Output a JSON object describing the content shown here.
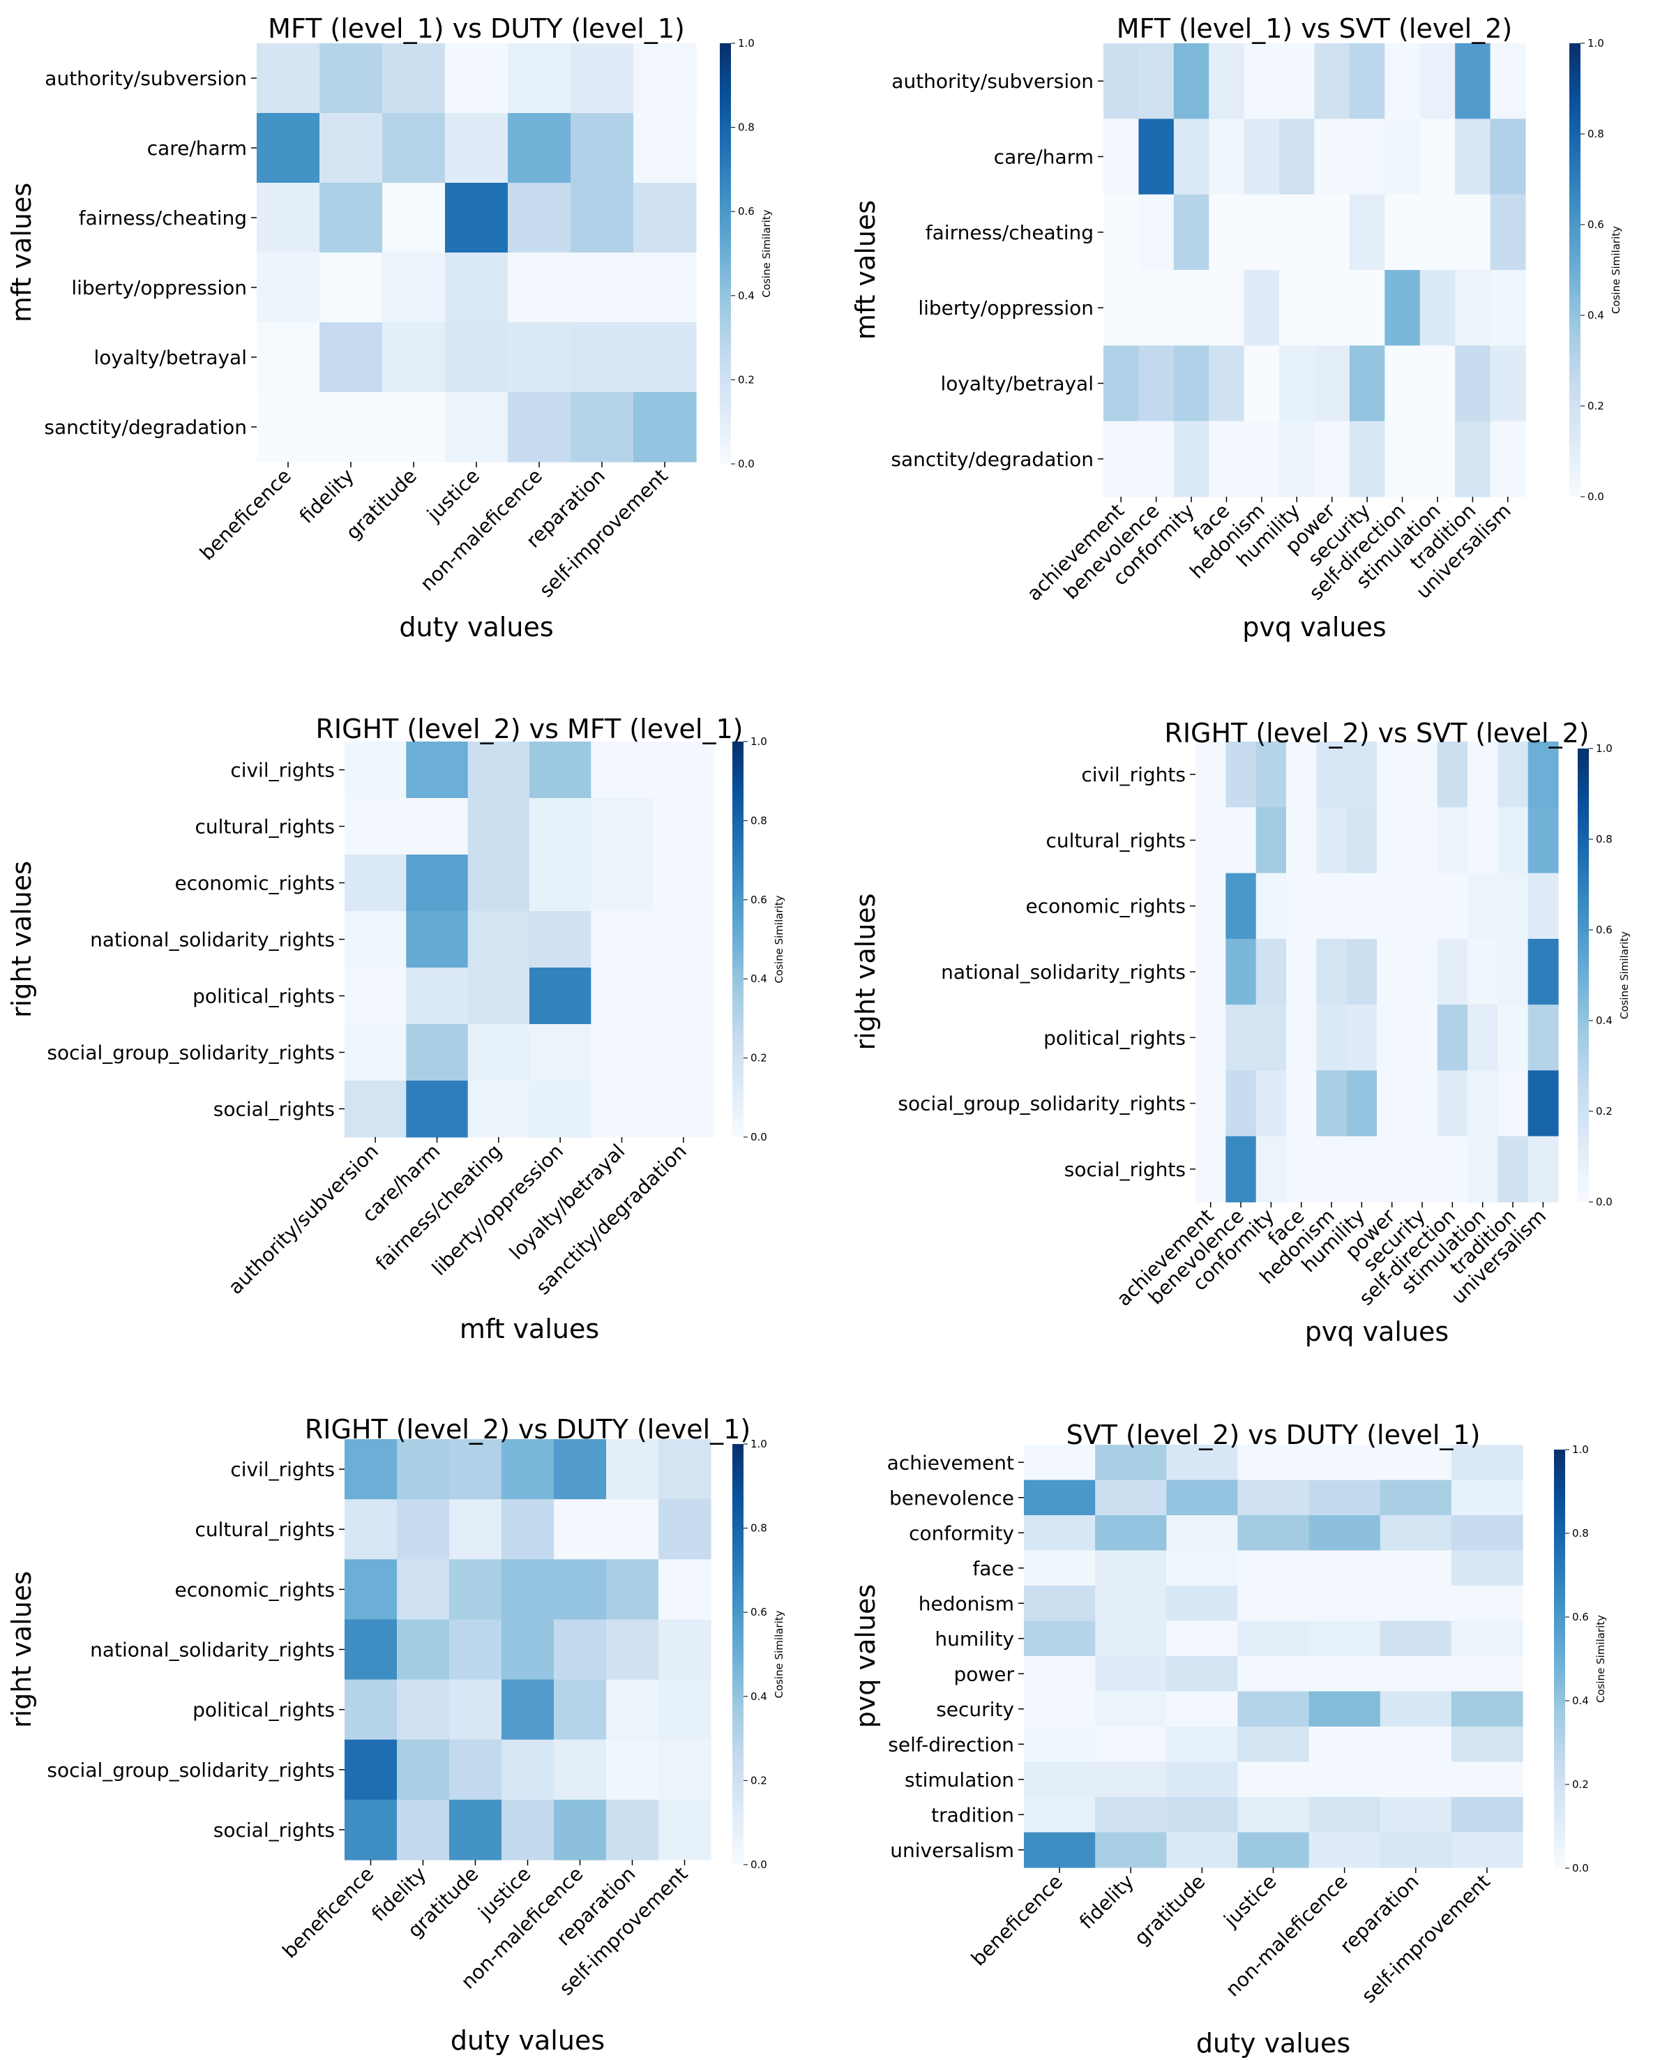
{
  "colors": {
    "low": "#f7fbff",
    "high": "#08306b"
  },
  "chart_data": [
    {
      "type": "heatmap",
      "title": "MFT (level_1) vs DUTY (level_1)",
      "xlabel": "duty values",
      "ylabel": "mft values",
      "colorbar_label": "Cosine Similarity",
      "colorbar_ticks": [
        "0.0",
        "0.2",
        "0.4",
        "0.6",
        "0.8",
        "1.0"
      ],
      "vrange": [
        0,
        1
      ],
      "rows": [
        "authority/subversion",
        "care/harm",
        "fairness/cheating",
        "liberty/oppression",
        "loyalty/betrayal",
        "sanctity/degradation"
      ],
      "cols": [
        "beneficence",
        "fidelity",
        "gratitude",
        "justice",
        "non-maleficence",
        "reparation",
        "self-improvement"
      ],
      "values": [
        [
          0.17,
          0.3,
          0.22,
          0.02,
          0.08,
          0.12,
          0.03
        ],
        [
          0.62,
          0.17,
          0.3,
          0.12,
          0.48,
          0.32,
          0.02
        ],
        [
          0.09,
          0.33,
          0.01,
          0.75,
          0.24,
          0.32,
          0.2
        ],
        [
          0.05,
          0.01,
          0.06,
          0.14,
          0.02,
          0.02,
          0.02
        ],
        [
          0.01,
          0.25,
          0.1,
          0.16,
          0.14,
          0.16,
          0.16
        ],
        [
          0.0,
          0.0,
          0.0,
          0.06,
          0.24,
          0.3,
          0.4
        ]
      ]
    },
    {
      "type": "heatmap",
      "title": "MFT (level_1) vs SVT (level_2)",
      "xlabel": "pvq values",
      "ylabel": "mft values",
      "colorbar_label": "Cosine Similarity",
      "colorbar_ticks": [
        "0.0",
        "0.2",
        "0.4",
        "0.6",
        "0.8",
        "1.0"
      ],
      "vrange": [
        0,
        1
      ],
      "rows": [
        "authority/subversion",
        "care/harm",
        "fairness/cheating",
        "liberty/oppression",
        "loyalty/betrayal",
        "sanctity/degradation"
      ],
      "cols": [
        "achievement",
        "benevolence",
        "conformity",
        "face",
        "hedonism",
        "humility",
        "power",
        "security",
        "self-direction",
        "stimulation",
        "tradition",
        "universalism"
      ],
      "values": [
        [
          0.22,
          0.2,
          0.45,
          0.1,
          0.02,
          0.02,
          0.2,
          0.28,
          0.02,
          0.07,
          0.58,
          0.03
        ],
        [
          0.02,
          0.78,
          0.14,
          0.04,
          0.12,
          0.2,
          0.02,
          0.02,
          0.04,
          0.0,
          0.16,
          0.32
        ],
        [
          0.0,
          0.02,
          0.3,
          0.0,
          0.0,
          0.0,
          0.0,
          0.1,
          0.0,
          0.0,
          0.0,
          0.24
        ],
        [
          0.0,
          0.0,
          0.0,
          0.0,
          0.12,
          0.0,
          0.0,
          0.0,
          0.46,
          0.14,
          0.06,
          0.04
        ],
        [
          0.32,
          0.26,
          0.32,
          0.2,
          0.0,
          0.08,
          0.1,
          0.4,
          0.0,
          0.0,
          0.24,
          0.12
        ],
        [
          0.02,
          0.02,
          0.14,
          0.02,
          0.02,
          0.06,
          0.02,
          0.16,
          0.0,
          0.0,
          0.18,
          0.02
        ]
      ]
    },
    {
      "type": "heatmap",
      "title": "RIGHT (level_2) vs MFT (level_1)",
      "xlabel": "mft values",
      "ylabel": "right values",
      "colorbar_label": "Cosine Similarity",
      "colorbar_ticks": [
        "0.0",
        "0.2",
        "0.4",
        "0.6",
        "0.8",
        "1.0"
      ],
      "vrange": [
        0,
        1
      ],
      "rows": [
        "civil_rights",
        "cultural_rights",
        "economic_rights",
        "national_solidarity_rights",
        "political_rights",
        "social_group_solidarity_rights",
        "social_rights"
      ],
      "cols": [
        "authority/subversion",
        "care/harm",
        "fairness/cheating",
        "liberty/oppression",
        "loyalty/betrayal",
        "sanctity/degradation"
      ],
      "values": [
        [
          0.04,
          0.5,
          0.22,
          0.38,
          0.02,
          0.02
        ],
        [
          0.02,
          0.02,
          0.22,
          0.08,
          0.06,
          0.02
        ],
        [
          0.14,
          0.56,
          0.22,
          0.08,
          0.06,
          0.02
        ],
        [
          0.04,
          0.52,
          0.18,
          0.2,
          0.02,
          0.02
        ],
        [
          0.02,
          0.14,
          0.18,
          0.68,
          0.02,
          0.02
        ],
        [
          0.04,
          0.34,
          0.08,
          0.06,
          0.02,
          0.02
        ],
        [
          0.18,
          0.7,
          0.06,
          0.08,
          0.02,
          0.02
        ]
      ]
    },
    {
      "type": "heatmap",
      "title": "RIGHT (level_2) vs SVT (level_2)",
      "xlabel": "pvq values",
      "ylabel": "right values",
      "colorbar_label": "Cosine Similarity",
      "colorbar_ticks": [
        "0.0",
        "0.2",
        "0.4",
        "0.6",
        "0.8",
        "1.0"
      ],
      "vrange": [
        0,
        1
      ],
      "rows": [
        "civil_rights",
        "cultural_rights",
        "economic_rights",
        "national_solidarity_rights",
        "political_rights",
        "social_group_solidarity_rights",
        "social_rights"
      ],
      "cols": [
        "achievement",
        "benevolence",
        "conformity",
        "face",
        "hedonism",
        "humility",
        "power",
        "security",
        "self-direction",
        "stimulation",
        "tradition",
        "universalism"
      ],
      "values": [
        [
          0.02,
          0.24,
          0.3,
          0.02,
          0.16,
          0.16,
          0.02,
          0.02,
          0.22,
          0.02,
          0.16,
          0.5
        ],
        [
          0.02,
          0.02,
          0.36,
          0.02,
          0.12,
          0.18,
          0.02,
          0.02,
          0.06,
          0.02,
          0.08,
          0.48
        ],
        [
          0.02,
          0.6,
          0.04,
          0.02,
          0.02,
          0.02,
          0.02,
          0.02,
          0.02,
          0.06,
          0.06,
          0.12
        ],
        [
          0.02,
          0.46,
          0.2,
          0.02,
          0.18,
          0.22,
          0.02,
          0.02,
          0.1,
          0.04,
          0.06,
          0.7
        ],
        [
          0.02,
          0.18,
          0.18,
          0.02,
          0.14,
          0.12,
          0.02,
          0.02,
          0.32,
          0.1,
          0.04,
          0.3
        ],
        [
          0.02,
          0.24,
          0.12,
          0.02,
          0.34,
          0.4,
          0.02,
          0.02,
          0.12,
          0.06,
          0.02,
          0.8
        ],
        [
          0.02,
          0.66,
          0.06,
          0.02,
          0.02,
          0.02,
          0.02,
          0.02,
          0.02,
          0.06,
          0.2,
          0.1
        ]
      ]
    },
    {
      "type": "heatmap",
      "title": "RIGHT (level_2) vs DUTY (level_1)",
      "xlabel": "duty values",
      "ylabel": "right values",
      "colorbar_label": "Cosine Similarity",
      "colorbar_ticks": [
        "0.0",
        "0.2",
        "0.4",
        "0.6",
        "0.8",
        "1.0"
      ],
      "vrange": [
        0,
        1
      ],
      "rows": [
        "civil_rights",
        "cultural_rights",
        "economic_rights",
        "national_solidarity_rights",
        "political_rights",
        "social_group_solidarity_rights",
        "social_rights"
      ],
      "cols": [
        "beneficence",
        "fidelity",
        "gratitude",
        "justice",
        "non-maleficence",
        "reparation",
        "self-improvement"
      ],
      "values": [
        [
          0.5,
          0.34,
          0.32,
          0.46,
          0.58,
          0.1,
          0.18
        ],
        [
          0.16,
          0.24,
          0.1,
          0.26,
          0.02,
          0.02,
          0.24
        ],
        [
          0.5,
          0.2,
          0.34,
          0.4,
          0.4,
          0.34,
          0.02
        ],
        [
          0.64,
          0.36,
          0.28,
          0.4,
          0.26,
          0.2,
          0.1
        ],
        [
          0.3,
          0.2,
          0.16,
          0.58,
          0.3,
          0.06,
          0.08
        ],
        [
          0.76,
          0.34,
          0.26,
          0.16,
          0.1,
          0.04,
          0.06
        ],
        [
          0.64,
          0.26,
          0.62,
          0.26,
          0.42,
          0.22,
          0.08
        ]
      ]
    },
    {
      "type": "heatmap",
      "title": "SVT (level_2)  vs DUTY (level_1)",
      "xlabel": "duty values",
      "ylabel": "pvq values",
      "colorbar_label": "Cosine Similarity",
      "colorbar_ticks": [
        "0.0",
        "0.2",
        "0.4",
        "0.6",
        "0.8",
        "1.0"
      ],
      "vrange": [
        0,
        1
      ],
      "rows": [
        "achievement",
        "benevolence",
        "conformity",
        "face",
        "hedonism",
        "humility",
        "power",
        "security",
        "self-direction",
        "stimulation",
        "tradition",
        "universalism"
      ],
      "cols": [
        "beneficence",
        "fidelity",
        "gratitude",
        "justice",
        "non-maleficence",
        "reparation",
        "self-improvement"
      ],
      "values": [
        [
          0.02,
          0.34,
          0.16,
          0.02,
          0.02,
          0.02,
          0.14
        ],
        [
          0.6,
          0.22,
          0.4,
          0.2,
          0.26,
          0.34,
          0.08
        ],
        [
          0.16,
          0.4,
          0.06,
          0.36,
          0.42,
          0.18,
          0.24
        ],
        [
          0.04,
          0.1,
          0.04,
          0.02,
          0.02,
          0.02,
          0.16
        ],
        [
          0.22,
          0.1,
          0.16,
          0.02,
          0.02,
          0.02,
          0.02
        ],
        [
          0.3,
          0.1,
          0.02,
          0.1,
          0.08,
          0.2,
          0.06
        ],
        [
          0.02,
          0.12,
          0.18,
          0.02,
          0.02,
          0.02,
          0.02
        ],
        [
          0.02,
          0.06,
          0.02,
          0.3,
          0.44,
          0.16,
          0.36
        ],
        [
          0.04,
          0.02,
          0.08,
          0.18,
          0.02,
          0.02,
          0.18
        ],
        [
          0.1,
          0.1,
          0.14,
          0.02,
          0.02,
          0.02,
          0.02
        ],
        [
          0.08,
          0.2,
          0.22,
          0.1,
          0.18,
          0.12,
          0.26
        ],
        [
          0.64,
          0.34,
          0.14,
          0.38,
          0.12,
          0.16,
          0.12
        ]
      ]
    }
  ]
}
